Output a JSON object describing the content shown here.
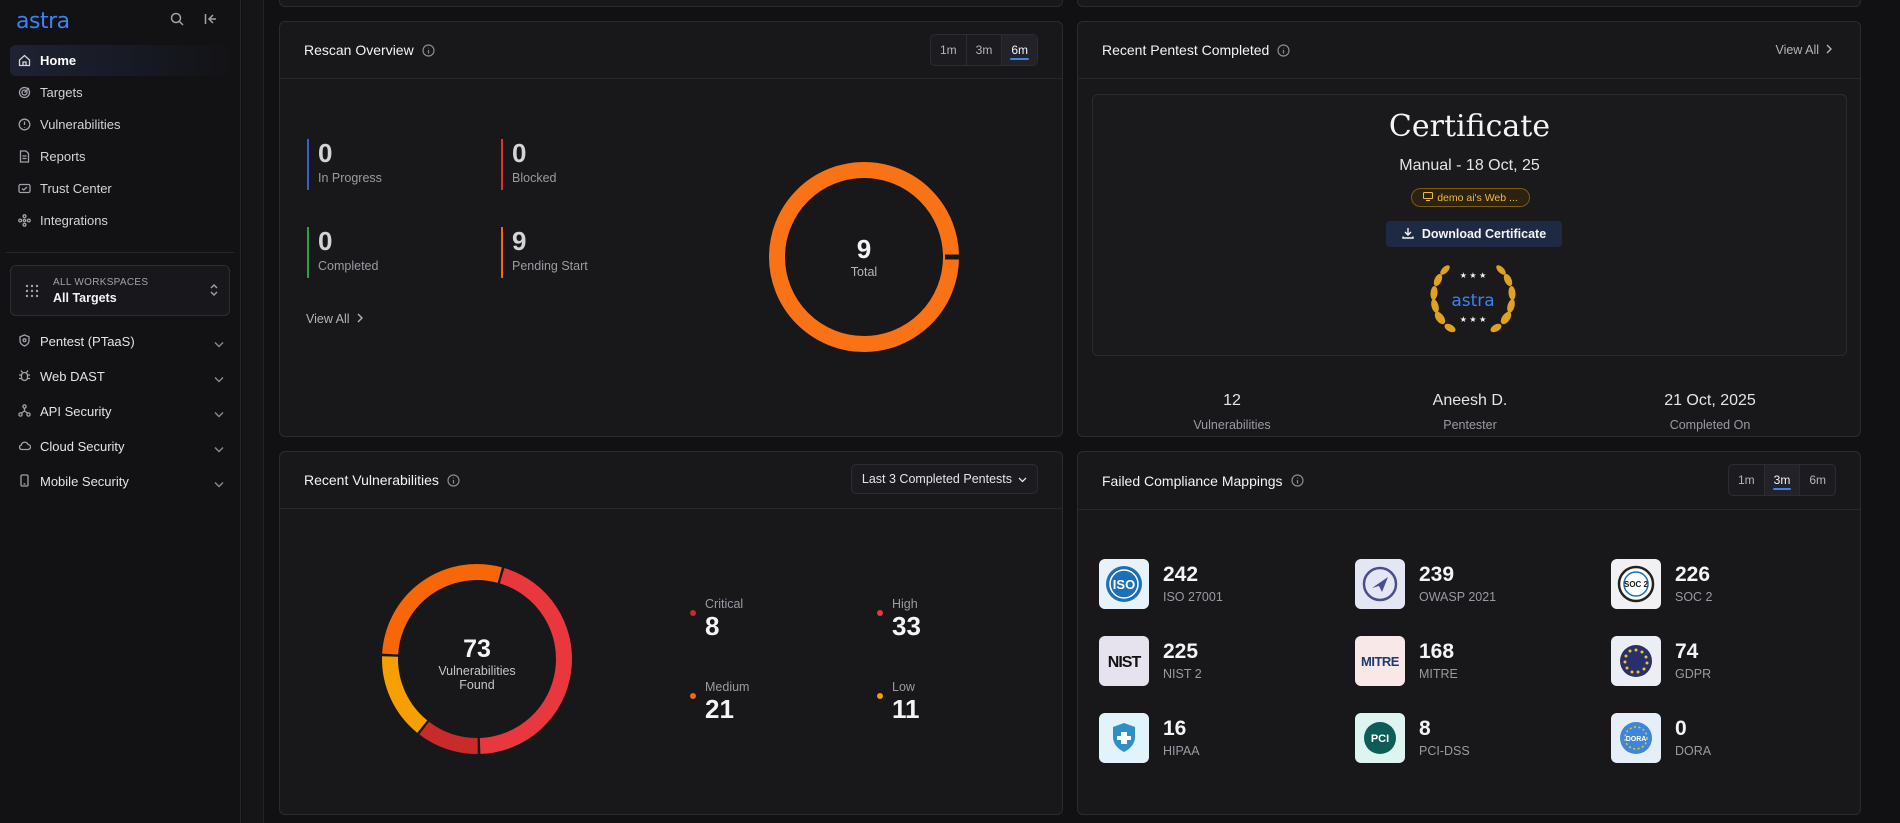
{
  "sidebar": {
    "logo": "astra",
    "nav": [
      {
        "label": "Home",
        "icon": "home-icon",
        "active": true
      },
      {
        "label": "Targets",
        "icon": "target-icon"
      },
      {
        "label": "Vulnerabilities",
        "icon": "alert-circle-icon"
      },
      {
        "label": "Reports",
        "icon": "report-icon"
      },
      {
        "label": "Trust Center",
        "icon": "shield-badge-icon"
      },
      {
        "label": "Integrations",
        "icon": "integrations-icon"
      }
    ],
    "workspace": {
      "caption": "ALL WORKSPACES",
      "value": "All Targets"
    },
    "sections": [
      {
        "label": "Pentest (PTaaS)",
        "icon": "shield-icon"
      },
      {
        "label": "Web DAST",
        "icon": "bug-icon"
      },
      {
        "label": "API Security",
        "icon": "api-icon"
      },
      {
        "label": "Cloud Security",
        "icon": "cloud-icon"
      },
      {
        "label": "Mobile Security",
        "icon": "mobile-icon"
      }
    ]
  },
  "rescan": {
    "title": "Rescan Overview",
    "ranges": [
      "1m",
      "3m",
      "6m"
    ],
    "active_range": "6m",
    "stats": [
      {
        "value": "0",
        "label": "In Progress",
        "color": "#3b5bdb"
      },
      {
        "value": "0",
        "label": "Blocked",
        "color": "#e03131"
      },
      {
        "value": "0",
        "label": "Completed",
        "color": "#2f9e44"
      },
      {
        "value": "9",
        "label": "Pending Start",
        "color": "#f76707"
      }
    ],
    "view_all": "View All",
    "total_value": "9",
    "total_label": "Total"
  },
  "pentest": {
    "title": "Recent Pentest Completed",
    "view_all": "View All",
    "cert_title": "Certificate",
    "cert_sub": "Manual - 18 Oct, 25",
    "tag": "demo ai's Web ...",
    "download": "Download Certificate",
    "badge_text": "astra",
    "meta": [
      {
        "value": "12",
        "label": "Vulnerabilities"
      },
      {
        "value": "Aneesh D.",
        "label": "Pentester"
      },
      {
        "value": "21 Oct, 2025",
        "label": "Completed On"
      }
    ]
  },
  "vulns": {
    "title": "Recent Vulnerabilities",
    "filter": "Last 3 Completed Pentests",
    "total": "73",
    "total_label_1": "Vulnerabilities",
    "total_label_2": "Found",
    "severities": [
      {
        "label": "Critical",
        "value": 8,
        "color": "#c92a2a"
      },
      {
        "label": "High",
        "value": 33,
        "color": "#e8383d"
      },
      {
        "label": "Medium",
        "value": 21,
        "color": "#f76707"
      },
      {
        "label": "Low",
        "value": 11,
        "color": "#f59f00"
      }
    ]
  },
  "compliance": {
    "title": "Failed Compliance Mappings",
    "ranges": [
      "1m",
      "3m",
      "6m"
    ],
    "active_range": "3m",
    "items": [
      {
        "value": "242",
        "label": "ISO 27001",
        "icon": "iso-icon"
      },
      {
        "value": "239",
        "label": "OWASP 2021",
        "icon": "owasp-icon"
      },
      {
        "value": "226",
        "label": "SOC 2",
        "icon": "soc2-icon"
      },
      {
        "value": "225",
        "label": "NIST 2",
        "icon": "nist-icon"
      },
      {
        "value": "168",
        "label": "MITRE",
        "icon": "mitre-icon"
      },
      {
        "value": "74",
        "label": "GDPR",
        "icon": "gdpr-icon"
      },
      {
        "value": "16",
        "label": "HIPAA",
        "icon": "hipaa-icon"
      },
      {
        "value": "8",
        "label": "PCI-DSS",
        "icon": "pci-icon"
      },
      {
        "value": "0",
        "label": "DORA",
        "icon": "dora-icon"
      }
    ],
    "icon_text": {
      "iso": "ISO",
      "nist": "NIST",
      "mitre": "MITRE",
      "pci": "PCI",
      "soc": "SOC 2",
      "dora": "DORA"
    }
  }
}
